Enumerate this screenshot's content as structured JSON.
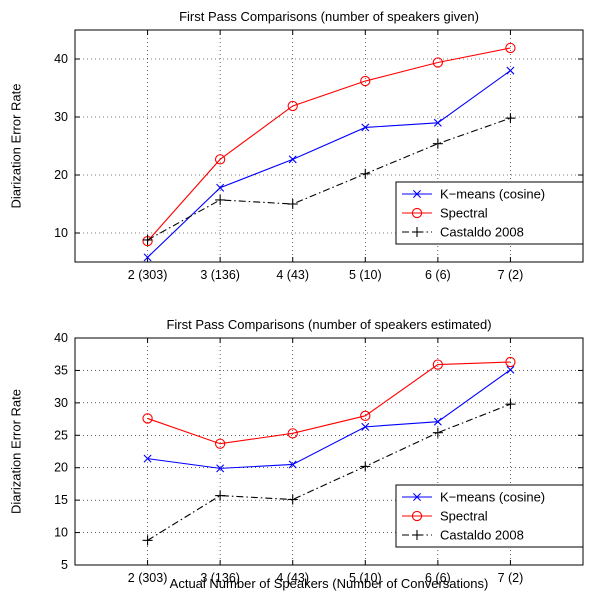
{
  "colors": {
    "kmeans": "#0000ff",
    "spectral": "#ff0000",
    "castaldo": "#000000"
  },
  "chart_data": [
    {
      "type": "line",
      "title": "First Pass Comparisons (number of speakers given)",
      "xlabel": "",
      "ylabel": "Diarization Error Rate",
      "categories": [
        "2 (303)",
        "3 (136)",
        "4 (43)",
        "5 (10)",
        "6 (6)",
        "7 (2)"
      ],
      "ylim": [
        5,
        45
      ],
      "yticks": [
        10,
        20,
        30,
        40
      ],
      "grid": true,
      "legend_position": "lower-right",
      "series": [
        {
          "name": "K−means (cosine)",
          "marker": "x",
          "style": "solid",
          "color_key": "kmeans",
          "values": [
            5.8,
            17.8,
            22.7,
            28.2,
            29.0,
            38.0
          ]
        },
        {
          "name": "Spectral",
          "marker": "o",
          "style": "solid",
          "color_key": "spectral",
          "values": [
            8.6,
            22.7,
            31.9,
            36.2,
            39.4,
            41.9
          ]
        },
        {
          "name": "Castaldo 2008",
          "marker": "+",
          "style": "dashdot",
          "color_key": "castaldo",
          "values": [
            8.8,
            15.7,
            15.0,
            20.2,
            25.4,
            29.8
          ]
        }
      ]
    },
    {
      "type": "line",
      "title": "First Pass Comparisons (number of speakers estimated)",
      "xlabel": "Actual Number of Speakers (Number of Conversations)",
      "ylabel": "Diarization Error Rate",
      "categories": [
        "2 (303)",
        "3 (136)",
        "4 (43)",
        "5 (10)",
        "6 (6)",
        "7 (2)"
      ],
      "ylim": [
        5,
        40
      ],
      "yticks": [
        5,
        10,
        15,
        20,
        25,
        30,
        35,
        40
      ],
      "grid": true,
      "legend_position": "lower-right",
      "series": [
        {
          "name": "K−means (cosine)",
          "marker": "x",
          "style": "solid",
          "color_key": "kmeans",
          "values": [
            21.4,
            19.9,
            20.5,
            26.3,
            27.1,
            35.1
          ]
        },
        {
          "name": "Spectral",
          "marker": "o",
          "style": "solid",
          "color_key": "spectral",
          "values": [
            27.6,
            23.7,
            25.3,
            28.0,
            35.9,
            36.3
          ]
        },
        {
          "name": "Castaldo 2008",
          "marker": "+",
          "style": "dashdot",
          "color_key": "castaldo",
          "values": [
            8.8,
            15.7,
            15.1,
            20.2,
            25.4,
            29.8
          ]
        }
      ]
    }
  ]
}
